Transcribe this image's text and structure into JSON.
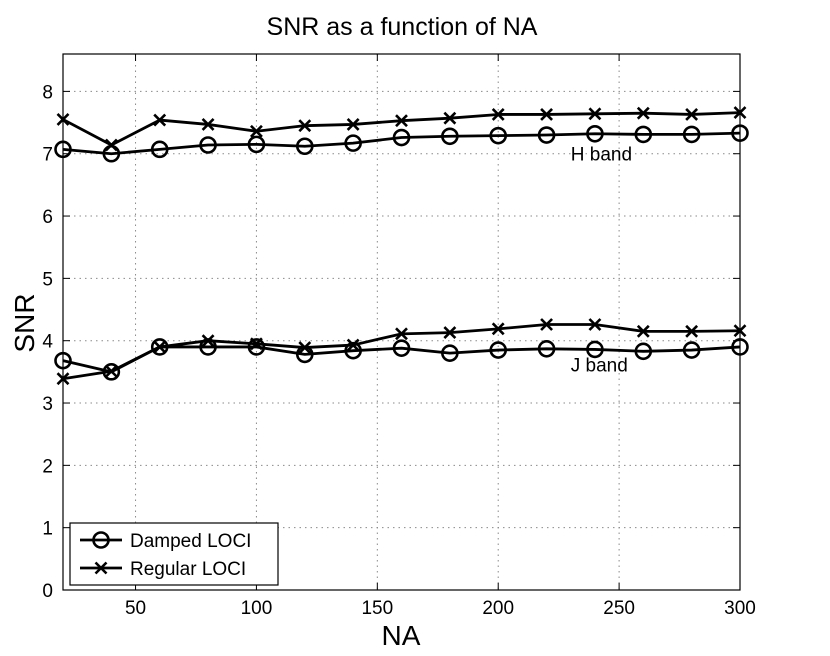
{
  "chart_data": {
    "type": "line",
    "title": "SNR as a function of NA",
    "xlabel": "NA",
    "ylabel": "SNR",
    "xlim": [
      20,
      300
    ],
    "ylim": [
      0,
      8.6
    ],
    "xticks": [
      50,
      100,
      150,
      200,
      250,
      300
    ],
    "yticks": [
      0,
      1,
      2,
      3,
      4,
      5,
      6,
      7,
      8
    ],
    "grid": true,
    "legend_position": "bottom-left",
    "x": [
      20,
      40,
      60,
      80,
      100,
      120,
      140,
      160,
      180,
      200,
      220,
      240,
      260,
      280,
      300
    ],
    "series": [
      {
        "name": "Damped LOCI",
        "band": "H band",
        "marker": "circle",
        "values": [
          7.07,
          7.0,
          7.07,
          7.14,
          7.15,
          7.12,
          7.17,
          7.26,
          7.28,
          7.29,
          7.3,
          7.32,
          7.31,
          7.31,
          7.33
        ]
      },
      {
        "name": "Regular LOCI",
        "band": "H band",
        "marker": "x",
        "values": [
          7.55,
          7.14,
          7.54,
          7.47,
          7.36,
          7.45,
          7.47,
          7.53,
          7.57,
          7.63,
          7.63,
          7.64,
          7.65,
          7.63,
          7.66
        ]
      },
      {
        "name": "Damped LOCI",
        "band": "J band",
        "marker": "circle",
        "values": [
          3.68,
          3.5,
          3.9,
          3.9,
          3.9,
          3.78,
          3.84,
          3.88,
          3.8,
          3.85,
          3.87,
          3.86,
          3.83,
          3.85,
          3.9
        ]
      },
      {
        "name": "Regular LOCI",
        "band": "J band",
        "marker": "x",
        "values": [
          3.39,
          3.51,
          3.9,
          4.0,
          3.95,
          3.89,
          3.93,
          4.11,
          4.13,
          4.19,
          4.26,
          4.26,
          4.15,
          4.15,
          4.16
        ]
      }
    ],
    "annotations": [
      {
        "id": "h",
        "text": "H band",
        "x": 230,
        "y": 7.0
      },
      {
        "id": "j",
        "text": "J band",
        "x": 230,
        "y": 3.62
      }
    ],
    "legend": [
      {
        "label": "Damped LOCI",
        "marker": "circle"
      },
      {
        "label": "Regular LOCI",
        "marker": "x"
      }
    ]
  },
  "colors": {
    "line": "#000000",
    "grid": "#8a8a8a",
    "background": "#ffffff"
  }
}
